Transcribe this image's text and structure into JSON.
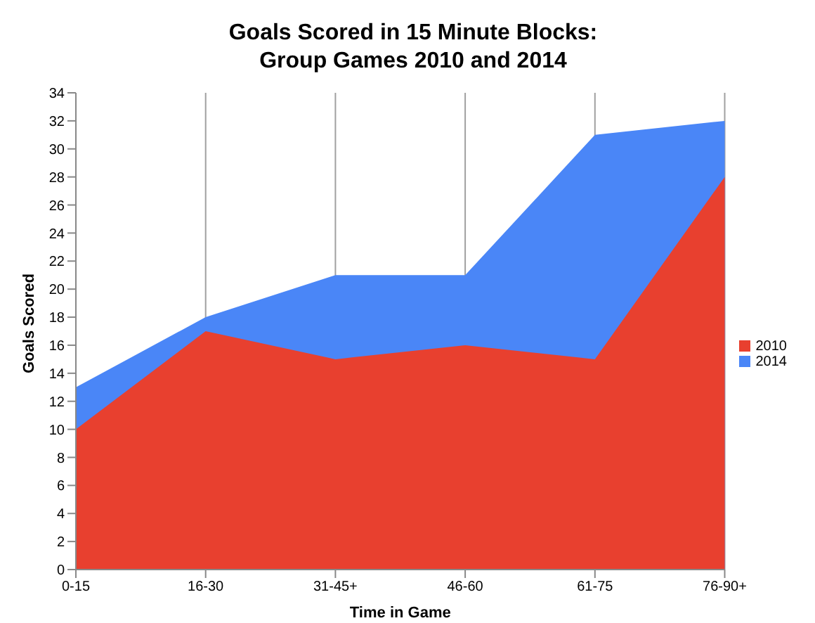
{
  "chart_data": {
    "type": "area",
    "title": "Goals Scored in 15 Minute Blocks:\nGroup Games 2010 and 2014",
    "xlabel": "Time in Game",
    "ylabel": "Goals Scored",
    "categories": [
      "0-15",
      "16-30",
      "31-45+",
      "46-60",
      "61-75",
      "76-90+"
    ],
    "series": [
      {
        "name": "2014",
        "color": "#4a86f7",
        "values": [
          13,
          18,
          21,
          21,
          31,
          32
        ]
      },
      {
        "name": "2010",
        "color": "#e8402f",
        "values": [
          10,
          17,
          15,
          16,
          15,
          28
        ]
      }
    ],
    "ylim": [
      0,
      34
    ],
    "yticks": [
      0,
      2,
      4,
      6,
      8,
      10,
      12,
      14,
      16,
      18,
      20,
      22,
      24,
      26,
      28,
      30,
      32,
      34
    ],
    "grid": "x",
    "legend": "right"
  }
}
